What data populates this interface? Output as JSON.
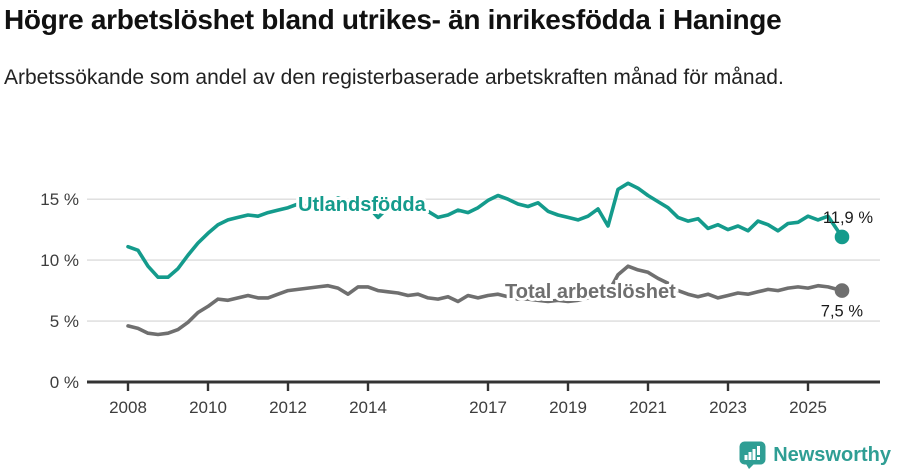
{
  "header": {
    "title": "Högre arbetslöshet bland utrikes- än inrikesfödda i Haninge",
    "subtitle": "Arbetssökande som andel av den registerbaserade arbetskraften månad för månad."
  },
  "footer": {
    "brand": "Newsworthy",
    "logo_icon": "newsworthy-speech-bubble-bar-chart-icon",
    "brand_color": "#2f9e94"
  },
  "colors": {
    "foreign_born_line": "#149b8c",
    "total_line": "#6f6f6f",
    "gridline": "#dcdcdc",
    "axis": "#333333",
    "tick_text": "#3d3d3d",
    "annotation_text": "#1a1a1a",
    "background": "#ffffff"
  },
  "chart_data": {
    "type": "line",
    "title": "Högre arbetslöshet bland utrikes- än inrikesfödda i Haninge",
    "subtitle": "Arbetssökande som andel av den registerbaserade arbetskraften månad för månad.",
    "xlabel": "",
    "ylabel": "%",
    "grid": "horizontal",
    "legend_position": "inline-labels",
    "xlim": [
      2006.9,
      2026.4
    ],
    "ylim": [
      0,
      17.6
    ],
    "x_unit": "decimal_year",
    "x": [
      2008.0,
      2008.25,
      2008.5,
      2008.75,
      2009.0,
      2009.25,
      2009.5,
      2009.75,
      2010.0,
      2010.25,
      2010.5,
      2010.75,
      2011.0,
      2011.25,
      2011.5,
      2011.75,
      2012.0,
      2012.25,
      2012.5,
      2012.75,
      2013.0,
      2013.25,
      2013.5,
      2013.75,
      2014.0,
      2014.25,
      2014.5,
      2014.75,
      2015.0,
      2015.25,
      2015.5,
      2015.75,
      2016.0,
      2016.25,
      2016.5,
      2016.75,
      2017.0,
      2017.25,
      2017.5,
      2017.75,
      2018.0,
      2018.25,
      2018.5,
      2018.75,
      2019.0,
      2019.25,
      2019.5,
      2019.75,
      2020.0,
      2020.25,
      2020.5,
      2020.75,
      2021.0,
      2021.25,
      2021.5,
      2021.75,
      2022.0,
      2022.25,
      2022.5,
      2022.75,
      2023.0,
      2023.25,
      2023.5,
      2023.75,
      2024.0,
      2024.25,
      2024.5,
      2024.75,
      2025.0,
      2025.25,
      2025.5,
      2025.85
    ],
    "series": [
      {
        "name": "Utlandsfödda",
        "color": "#149b8c",
        "end_label": "11,9 %",
        "end_value": 11.9,
        "values": [
          11.1,
          10.8,
          9.5,
          8.6,
          8.6,
          9.3,
          10.4,
          11.4,
          12.2,
          12.9,
          13.3,
          13.5,
          13.7,
          13.6,
          13.9,
          14.1,
          14.3,
          14.6,
          14.4,
          14.7,
          14.6,
          15.1,
          14.8,
          14.9,
          14.4,
          13.5,
          14.3,
          14.6,
          14.4,
          14.2,
          14.0,
          13.5,
          13.7,
          14.1,
          13.9,
          14.3,
          14.9,
          15.3,
          15.0,
          14.6,
          14.4,
          14.7,
          14.0,
          13.7,
          13.5,
          13.3,
          13.6,
          14.2,
          12.8,
          15.8,
          16.3,
          15.9,
          15.3,
          14.8,
          14.3,
          13.5,
          13.2,
          13.4,
          12.6,
          12.9,
          12.5,
          12.8,
          12.4,
          13.2,
          12.9,
          12.4,
          13.0,
          13.1,
          13.6,
          13.3,
          13.6,
          11.9
        ]
      },
      {
        "name": "Total arbetslöshet",
        "color": "#6f6f6f",
        "end_label": "7,5 %",
        "end_value": 7.5,
        "values": [
          4.6,
          4.4,
          4.0,
          3.9,
          4.0,
          4.3,
          4.9,
          5.7,
          6.2,
          6.8,
          6.7,
          6.9,
          7.1,
          6.9,
          6.9,
          7.2,
          7.5,
          7.6,
          7.7,
          7.8,
          7.9,
          7.7,
          7.2,
          7.8,
          7.8,
          7.5,
          7.4,
          7.3,
          7.1,
          7.2,
          6.9,
          6.8,
          7.0,
          6.6,
          7.1,
          6.9,
          7.1,
          7.2,
          7.0,
          6.8,
          6.8,
          6.7,
          6.6,
          6.7,
          6.6,
          6.7,
          6.9,
          7.0,
          7.3,
          8.8,
          9.5,
          9.2,
          9.0,
          8.5,
          8.1,
          7.5,
          7.2,
          7.0,
          7.2,
          6.9,
          7.1,
          7.3,
          7.2,
          7.4,
          7.6,
          7.5,
          7.7,
          7.8,
          7.7,
          7.9,
          7.8,
          7.5
        ]
      }
    ],
    "x_ticks": [
      {
        "value": 2008,
        "label": "2008"
      },
      {
        "value": 2010,
        "label": "2010"
      },
      {
        "value": 2012,
        "label": "2012"
      },
      {
        "value": 2014,
        "label": "2014"
      },
      {
        "value": 2017,
        "label": "2017"
      },
      {
        "value": 2019,
        "label": "2019"
      },
      {
        "value": 2021,
        "label": "2021"
      },
      {
        "value": 2023,
        "label": "2023"
      },
      {
        "value": 2025,
        "label": "2025"
      }
    ],
    "y_ticks": [
      {
        "value": 0,
        "label": "0 %"
      },
      {
        "value": 5,
        "label": "5 %"
      },
      {
        "value": 10,
        "label": "10 %"
      },
      {
        "value": 15,
        "label": "15 %"
      }
    ]
  }
}
